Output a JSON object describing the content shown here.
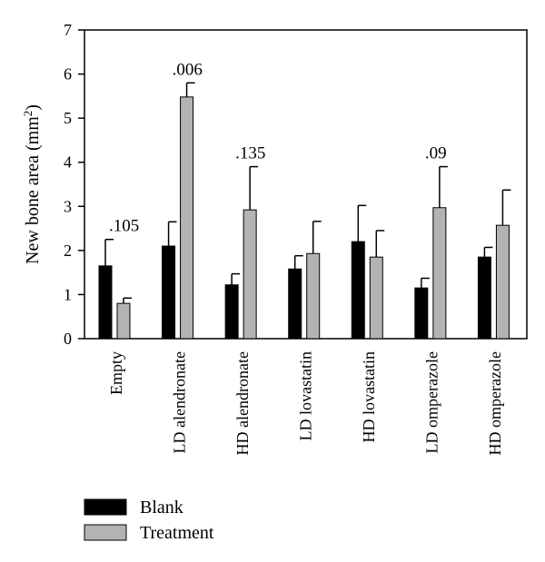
{
  "chart_data": {
    "type": "bar",
    "ylabel_main": "New bone area (mm",
    "ylabel_sup": "2",
    "ylabel_end": ")",
    "ylim": [
      0,
      7
    ],
    "yticks": [
      "0",
      "1",
      "2",
      "3",
      "4",
      "5",
      "6",
      "7"
    ],
    "categories": [
      "Empty",
      "LD alendronate",
      "HD alendronate",
      "LD lovastatin",
      "HD lovastatin",
      "LD omperazole",
      "HD omperazole"
    ],
    "series": [
      {
        "name": "Blank",
        "color": "#000000",
        "values": [
          1.65,
          2.1,
          1.22,
          1.58,
          2.2,
          1.15,
          1.85
        ],
        "errors": [
          0.6,
          0.55,
          0.25,
          0.3,
          0.82,
          0.22,
          0.22
        ]
      },
      {
        "name": "Treatment",
        "color": "#b3b3b3",
        "values": [
          0.8,
          5.48,
          2.92,
          1.93,
          1.85,
          2.97,
          2.57
        ],
        "errors": [
          0.12,
          0.32,
          0.98,
          0.73,
          0.6,
          0.93,
          0.8
        ]
      }
    ],
    "annotations": [
      {
        "category": 0,
        "text": ".105"
      },
      {
        "category": 1,
        "text": ".006"
      },
      {
        "category": 2,
        "text": ".135"
      },
      {
        "category": 5,
        "text": ".09"
      }
    ],
    "legend_position": "bottom-left",
    "grid": false
  }
}
